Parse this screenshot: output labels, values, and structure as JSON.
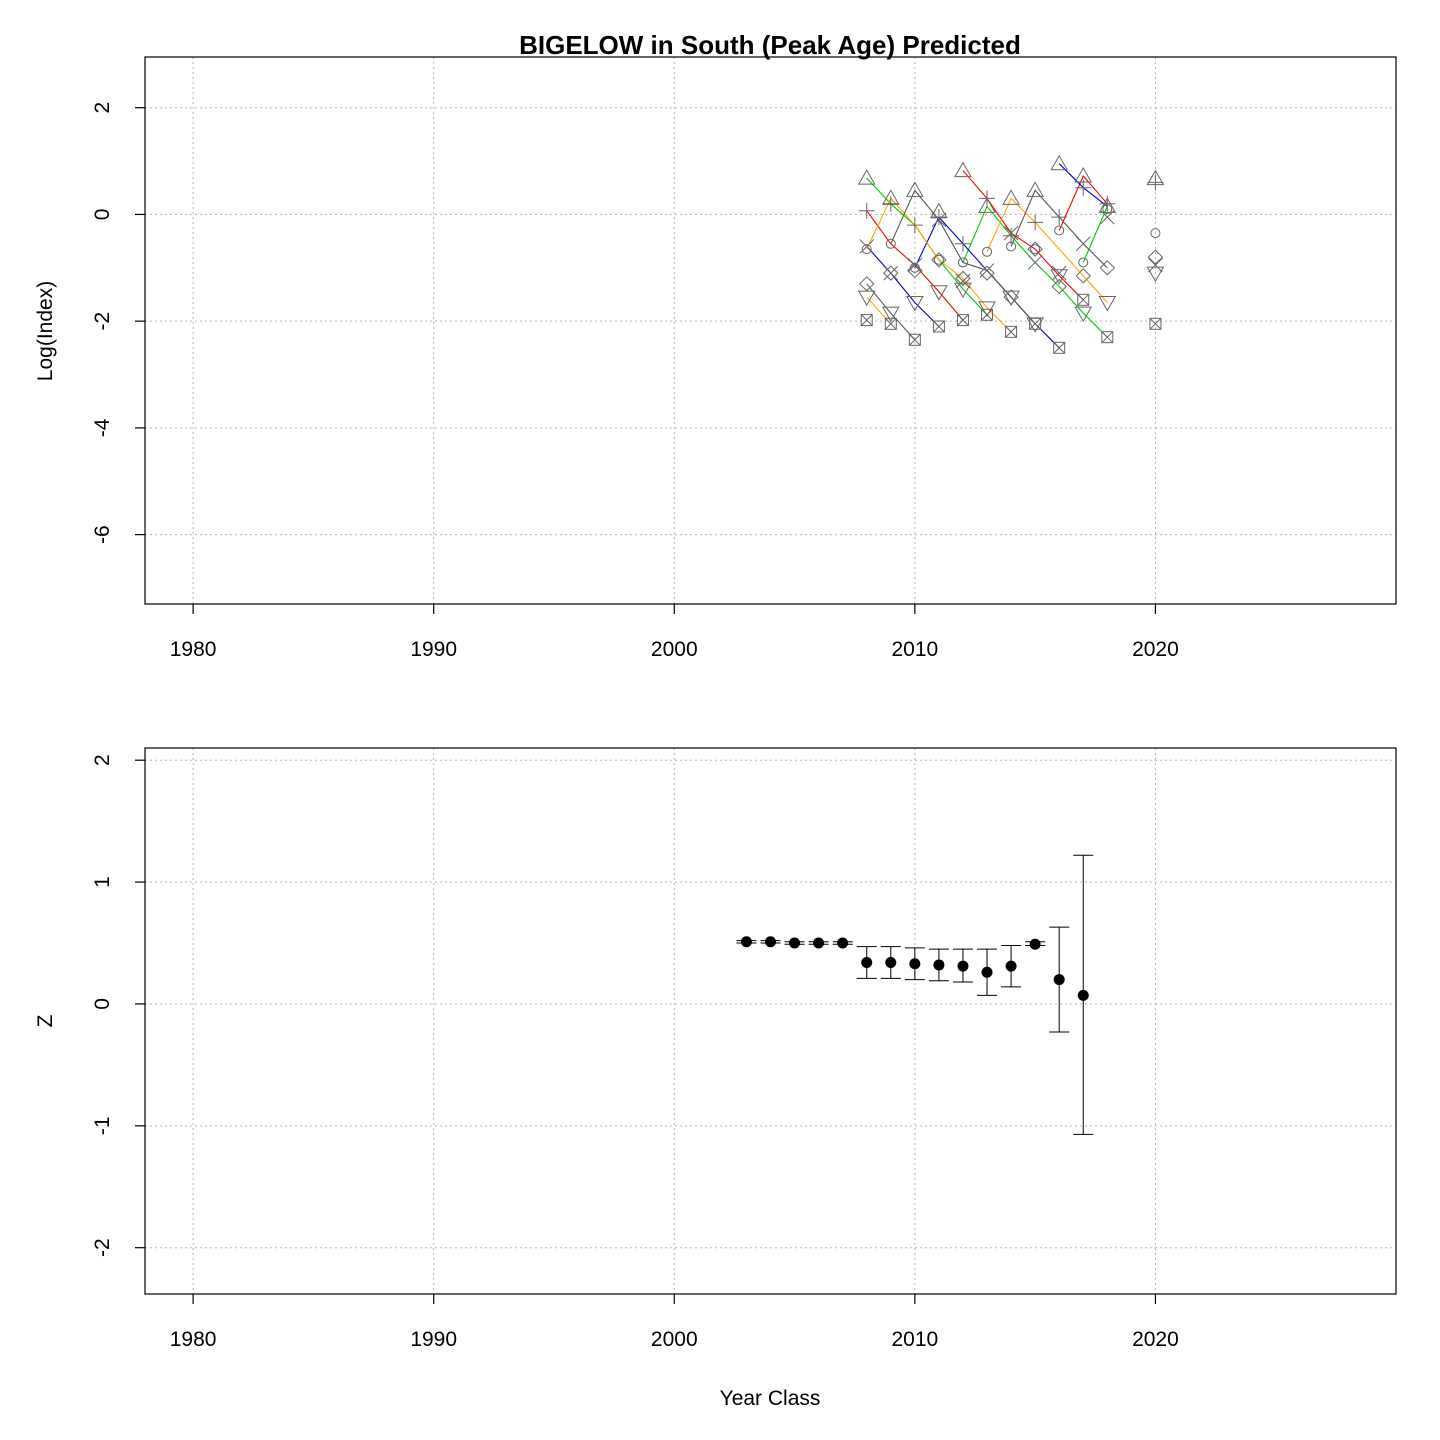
{
  "title": "BIGELOW in South (Peak Age) Predicted",
  "chart_data": [
    {
      "type": "scatter",
      "panel": "top",
      "ylabel": "Log(Index)",
      "xlabel": "",
      "xlim": [
        1978,
        2030
      ],
      "ylim": [
        -7.3,
        2.95
      ],
      "xticks": [
        1980,
        1990,
        2000,
        2010,
        2020
      ],
      "yticks": [
        -6,
        -4,
        -2,
        0,
        2
      ],
      "grid": true,
      "symbols": [
        "triangle",
        "plus",
        "circle",
        "x",
        "diamond",
        "triangle-down",
        "boxx"
      ],
      "points": [
        [
          [
            2008,
            0.68
          ],
          [
            2009,
            0.3
          ],
          [
            2010,
            0.45
          ],
          [
            2011,
            0.05
          ],
          [
            2012,
            0.82
          ],
          [
            2013,
            0.15
          ],
          [
            2014,
            0.3
          ],
          [
            2015,
            0.45
          ],
          [
            2016,
            0.95
          ],
          [
            2017,
            0.72
          ],
          [
            2018,
            0.15
          ],
          [
            2020,
            0.67
          ]
        ],
        [
          [
            2008,
            0.07
          ],
          [
            2009,
            0.2
          ],
          [
            2010,
            -0.2
          ],
          [
            2011,
            -0.05
          ],
          [
            2012,
            -0.55
          ],
          [
            2013,
            0.3
          ],
          [
            2014,
            -0.4
          ],
          [
            2015,
            -0.15
          ],
          [
            2016,
            -0.05
          ],
          [
            2017,
            0.5
          ],
          [
            2018,
            0.2
          ],
          [
            2020,
            0.6
          ]
        ],
        [
          [
            2008,
            -0.65
          ],
          [
            2009,
            -0.55
          ],
          [
            2010,
            -1.0
          ],
          [
            2011,
            -0.85
          ],
          [
            2012,
            -0.9
          ],
          [
            2013,
            -0.7
          ],
          [
            2014,
            -0.6
          ],
          [
            2015,
            -0.65
          ],
          [
            2016,
            -0.3
          ],
          [
            2017,
            -0.9
          ],
          [
            2018,
            0.1
          ],
          [
            2020,
            -0.35
          ]
        ],
        [
          [
            2008,
            -0.6
          ],
          [
            2009,
            -1.1
          ],
          [
            2010,
            -0.95
          ],
          [
            2011,
            -0.1
          ],
          [
            2012,
            -1.25
          ],
          [
            2013,
            -1.05
          ],
          [
            2014,
            -0.35
          ],
          [
            2015,
            -0.9
          ],
          [
            2016,
            -1.1
          ],
          [
            2017,
            -0.55
          ],
          [
            2018,
            -0.05
          ],
          [
            2020,
            -0.95
          ]
        ],
        [
          [
            2008,
            -1.3
          ],
          [
            2009,
            -1.1
          ],
          [
            2010,
            -1.05
          ],
          [
            2011,
            -0.85
          ],
          [
            2012,
            -1.2
          ],
          [
            2013,
            -1.1
          ],
          [
            2014,
            -1.55
          ],
          [
            2015,
            -0.65
          ],
          [
            2016,
            -1.35
          ],
          [
            2017,
            -1.15
          ],
          [
            2018,
            -1.0
          ],
          [
            2020,
            -0.8
          ]
        ],
        [
          [
            2008,
            -1.55
          ],
          [
            2009,
            -1.85
          ],
          [
            2010,
            -1.65
          ],
          [
            2011,
            -1.45
          ],
          [
            2012,
            -1.4
          ],
          [
            2013,
            -1.75
          ],
          [
            2014,
            -1.55
          ],
          [
            2015,
            -2.05
          ],
          [
            2016,
            -1.15
          ],
          [
            2017,
            -1.85
          ],
          [
            2018,
            -1.65
          ],
          [
            2020,
            -1.1
          ]
        ],
        [
          [
            2008,
            -1.98
          ],
          [
            2009,
            -2.05
          ],
          [
            2010,
            -2.35
          ],
          [
            2011,
            -2.1
          ],
          [
            2012,
            -1.98
          ],
          [
            2013,
            -1.88
          ],
          [
            2014,
            -2.2
          ],
          [
            2015,
            -2.05
          ],
          [
            2016,
            -2.5
          ],
          [
            2017,
            -1.6
          ],
          [
            2018,
            -2.3
          ],
          [
            2020,
            -2.05
          ]
        ]
      ],
      "cohorts": [
        {
          "color": "#ff0000",
          "points": [
            [
              2008,
              0.07
            ],
            [
              2009,
              -0.55
            ],
            [
              2010,
              -0.95
            ],
            [
              2011,
              -1.45
            ],
            [
              2012,
              -1.98
            ]
          ]
        },
        {
          "color": "#ff0000",
          "points": [
            [
              2012,
              0.82
            ],
            [
              2013,
              0.3
            ],
            [
              2014,
              -0.35
            ],
            [
              2015,
              -0.65
            ],
            [
              2016,
              -1.15
            ],
            [
              2017,
              -1.6
            ]
          ]
        },
        {
          "color": "#ff0000",
          "points": [
            [
              2016,
              -0.3
            ],
            [
              2017,
              0.72
            ],
            [
              2018,
              0.2
            ]
          ]
        },
        {
          "color": "#00cc00",
          "points": [
            [
              2008,
              0.68
            ],
            [
              2009,
              0.2
            ],
            [
              2010,
              -0.2
            ],
            [
              2011,
              -0.85
            ],
            [
              2012,
              -1.4
            ],
            [
              2013,
              -1.88
            ]
          ]
        },
        {
          "color": "#00cc00",
          "points": [
            [
              2012,
              -0.9
            ],
            [
              2013,
              0.15
            ],
            [
              2014,
              -0.4
            ],
            [
              2015,
              -0.9
            ],
            [
              2016,
              -1.35
            ],
            [
              2017,
              -1.85
            ],
            [
              2018,
              -2.3
            ]
          ]
        },
        {
          "color": "#00cc00",
          "points": [
            [
              2017,
              -0.9
            ],
            [
              2018,
              0.15
            ]
          ]
        },
        {
          "color": "#0000cc",
          "points": [
            [
              2008,
              -0.6
            ],
            [
              2009,
              -1.1
            ],
            [
              2010,
              -1.65
            ],
            [
              2011,
              -2.1
            ]
          ]
        },
        {
          "color": "#0000cc",
          "points": [
            [
              2010,
              -1.0
            ],
            [
              2011,
              -0.05
            ],
            [
              2012,
              -0.55
            ],
            [
              2013,
              -1.05
            ],
            [
              2014,
              -1.55
            ],
            [
              2015,
              -2.05
            ],
            [
              2016,
              -2.5
            ]
          ]
        },
        {
          "color": "#0000cc",
          "points": [
            [
              2016,
              0.95
            ],
            [
              2017,
              0.5
            ],
            [
              2018,
              0.15
            ]
          ]
        },
        {
          "color": "#ffa500",
          "points": [
            [
              2008,
              -0.65
            ],
            [
              2009,
              0.3
            ],
            [
              2010,
              -0.2
            ],
            [
              2011,
              -0.85
            ],
            [
              2012,
              -1.2
            ],
            [
              2013,
              -1.75
            ],
            [
              2014,
              -2.2
            ]
          ]
        },
        {
          "color": "#ffa500",
          "points": [
            [
              2013,
              -0.7
            ],
            [
              2014,
              0.3
            ],
            [
              2015,
              -0.15
            ],
            [
              2016,
              -0.65
            ],
            [
              2017,
              -1.15
            ],
            [
              2018,
              -1.65
            ]
          ]
        },
        {
          "color": "#ffa500",
          "points": [
            [
              2008,
              -1.55
            ],
            [
              2009,
              -2.05
            ]
          ]
        },
        {
          "color": "#555555",
          "points": [
            [
              2009,
              -0.55
            ],
            [
              2010,
              0.45
            ],
            [
              2011,
              -0.1
            ],
            [
              2012,
              -0.9
            ],
            [
              2013,
              -1.05
            ],
            [
              2014,
              -1.55
            ],
            [
              2015,
              -2.05
            ]
          ]
        },
        {
          "color": "#555555",
          "points": [
            [
              2014,
              -0.6
            ],
            [
              2015,
              0.45
            ],
            [
              2016,
              -0.05
            ],
            [
              2017,
              -0.55
            ],
            [
              2018,
              -1.0
            ]
          ]
        },
        {
          "color": "#555555",
          "points": [
            [
              2008,
              -1.3
            ],
            [
              2009,
              -1.85
            ],
            [
              2010,
              -2.35
            ]
          ]
        }
      ]
    },
    {
      "type": "scatter",
      "panel": "bottom",
      "ylabel": "Z",
      "xlabel": "Year Class",
      "xlim": [
        1978,
        2030
      ],
      "ylim": [
        -2.38,
        2.1
      ],
      "xticks": [
        1980,
        1990,
        2000,
        2010,
        2020
      ],
      "yticks": [
        -2,
        -1,
        0,
        1,
        2
      ],
      "grid": true,
      "x": [
        2003,
        2004,
        2005,
        2006,
        2007,
        2008,
        2009,
        2010,
        2011,
        2012,
        2013,
        2014,
        2015,
        2016,
        2017
      ],
      "y": [
        0.51,
        0.51,
        0.5,
        0.5,
        0.5,
        0.34,
        0.34,
        0.33,
        0.32,
        0.31,
        0.26,
        0.31,
        0.49,
        0.2,
        0.07
      ],
      "lower": [
        0.5,
        0.5,
        0.49,
        0.49,
        0.49,
        0.21,
        0.21,
        0.2,
        0.19,
        0.18,
        0.07,
        0.14,
        0.48,
        -0.23,
        -1.07
      ],
      "upper": [
        0.52,
        0.52,
        0.51,
        0.51,
        0.51,
        0.47,
        0.47,
        0.46,
        0.45,
        0.45,
        0.45,
        0.48,
        0.51,
        0.63,
        1.22
      ]
    }
  ]
}
